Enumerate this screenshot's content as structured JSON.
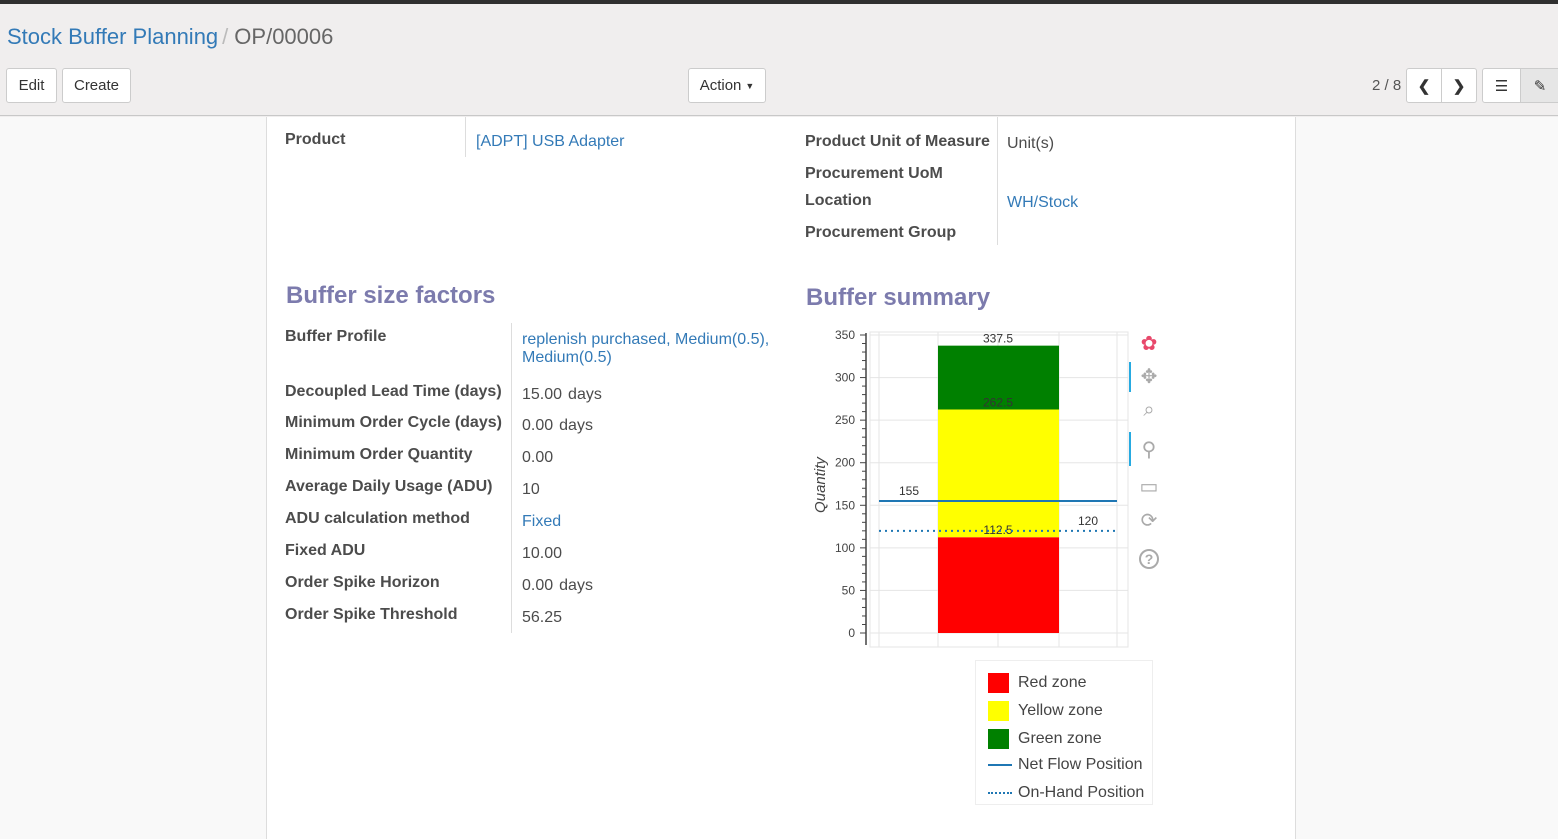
{
  "breadcrumb": {
    "parent": "Stock Buffer Planning",
    "current": "OP/00006"
  },
  "toolbar": {
    "edit": "Edit",
    "create": "Create",
    "action": "Action",
    "pager": "2 / 8"
  },
  "fields_top": {
    "product_label": "Product",
    "product_value": "[ADPT] USB Adapter",
    "uom_label": "Product Unit of Measure",
    "uom_value": "Unit(s)",
    "proc_uom_label": "Procurement UoM",
    "location_label": "Location",
    "location_value": "WH/Stock",
    "proc_group_label": "Procurement Group"
  },
  "buffer_factors": {
    "title": "Buffer size factors",
    "rows": [
      {
        "label": "Buffer Profile",
        "value": "replenish purchased, Medium(0.5),",
        "value2": "Medium(0.5)",
        "link": true
      },
      {
        "label": "Decoupled Lead Time (days)",
        "value": "15.00",
        "unit": "days"
      },
      {
        "label": "Minimum Order Cycle (days)",
        "value": "0.00",
        "unit": "days"
      },
      {
        "label": "Minimum Order Quantity",
        "value": "0.00"
      },
      {
        "label": "Average Daily Usage (ADU)",
        "value": "10"
      },
      {
        "label": "ADU calculation method",
        "value": "Fixed",
        "link": true
      },
      {
        "label": "Fixed ADU",
        "value": "10.00"
      },
      {
        "label": "Order Spike Horizon",
        "value": "0.00",
        "unit": "days"
      },
      {
        "label": "Order Spike Threshold",
        "value": "56.25"
      }
    ]
  },
  "buffer_summary": {
    "title": "Buffer summary"
  },
  "chart_data": {
    "type": "bar",
    "ylabel": "Quantity",
    "ylim": [
      0,
      350
    ],
    "yticks": [
      "0",
      "50",
      "100",
      "150",
      "200",
      "250",
      "300",
      "350"
    ],
    "grid": true,
    "legend_position": "bottom",
    "stacked_bar": [
      {
        "name": "Red zone",
        "from": 0,
        "to": 112.5,
        "color": "#ff0000"
      },
      {
        "name": "Yellow zone",
        "from": 112.5,
        "to": 262.5,
        "color": "#ffff00"
      },
      {
        "name": "Green zone",
        "from": 262.5,
        "to": 337.5,
        "color": "#008000"
      }
    ],
    "bar_labels": [
      "112.5",
      "262.5",
      "337.5"
    ],
    "lines": [
      {
        "name": "Net Flow Position",
        "value": 155,
        "label": "155",
        "style": "solid",
        "color": "#1f77b4"
      },
      {
        "name": "On-Hand Position",
        "value": 120,
        "label": "120",
        "style": "dotted",
        "color": "#1f77b4"
      }
    ]
  },
  "chart_tools": [
    "bokeh-logo-icon",
    "pan-icon",
    "box-zoom-icon",
    "wheel-zoom-icon",
    "save-icon",
    "reset-icon",
    "help-icon"
  ]
}
